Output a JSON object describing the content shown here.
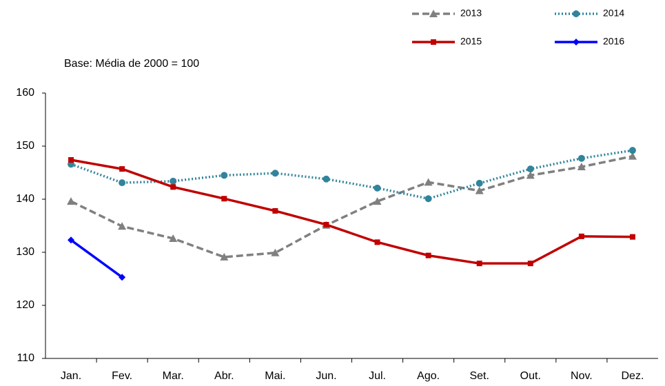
{
  "chart_data": {
    "type": "line",
    "annotation": "Base: Média de 2000 = 100",
    "categories": [
      "Jan.",
      "Fev.",
      "Mar.",
      "Abr.",
      "Mai.",
      "Jun.",
      "Jul.",
      "Ago.",
      "Set.",
      "Out.",
      "Nov.",
      "Dez."
    ],
    "series": [
      {
        "name": "2013",
        "color": "#808080",
        "dash": "dashed",
        "marker": "triangle",
        "values": [
          139.6,
          134.9,
          132.6,
          129.1,
          129.9,
          135.1,
          139.6,
          143.2,
          141.6,
          144.5,
          146.1,
          148.1
        ]
      },
      {
        "name": "2014",
        "color": "#31849b",
        "dash": "dotted",
        "marker": "circle",
        "values": [
          146.6,
          143.1,
          143.4,
          144.5,
          144.9,
          143.8,
          142.1,
          140.1,
          143.0,
          145.7,
          147.7,
          149.2
        ]
      },
      {
        "name": "2015",
        "color": "#c00000",
        "dash": "solid",
        "marker": "square",
        "values": [
          147.4,
          145.7,
          142.3,
          140.1,
          137.8,
          135.2,
          131.9,
          129.4,
          127.9,
          127.9,
          133.0,
          132.9
        ]
      },
      {
        "name": "2016",
        "color": "#0000ff",
        "dash": "solid",
        "marker": "diamond",
        "values": [
          132.3,
          125.3,
          null,
          null,
          null,
          null,
          null,
          null,
          null,
          null,
          null,
          null
        ]
      }
    ],
    "ylim": [
      110,
      160
    ],
    "yticks": [
      110,
      120,
      130,
      140,
      150,
      160
    ],
    "grid": false
  }
}
